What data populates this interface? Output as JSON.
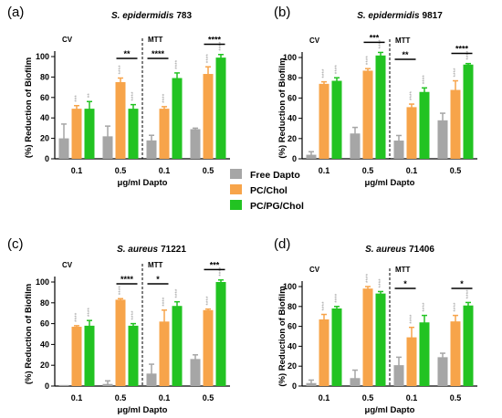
{
  "colors": {
    "free": "#a6a6a6",
    "pc": "#f7a44a",
    "pcpg": "#22c322"
  },
  "legend": [
    {
      "label": "Free Dapto",
      "color": "#a6a6a6"
    },
    {
      "label": "PC/Chol",
      "color": "#f7a44a"
    },
    {
      "label": "PC/PG/Chol",
      "color": "#22c322"
    }
  ],
  "chart_data": [
    {
      "panel": "(a)",
      "title": "S. epidermidis",
      "strain": "783",
      "type": "bar",
      "ylabel": "(%) Reduction of Biofilm",
      "xlabel": "μg/ml Dapto",
      "ylim": [
        0,
        100
      ],
      "yticks": [
        "0",
        "20",
        "40",
        "60",
        "80",
        "100"
      ],
      "sections": [
        "CV",
        "MTT"
      ],
      "categories": [
        "0.1",
        "0.5",
        "0.1",
        "0.5"
      ],
      "series": [
        {
          "name": "Free Dapto",
          "values": [
            20,
            22,
            18,
            29
          ],
          "errors": [
            14,
            10,
            5,
            1
          ]
        },
        {
          "name": "PC/Chol",
          "values": [
            49,
            75,
            49,
            83
          ],
          "errors": [
            3,
            4,
            2,
            7
          ]
        },
        {
          "name": "PC/PG/Chol",
          "values": [
            49,
            49,
            79,
            99
          ],
          "errors": [
            7,
            4,
            5,
            3
          ]
        }
      ],
      "bar_stars": [
        [
          "",
          "",
          "",
          ""
        ],
        [
          "***",
          "****",
          "****",
          "****"
        ],
        [
          "**",
          "****",
          "****",
          "****"
        ]
      ],
      "comparisons": [
        {
          "group": 1,
          "from": 1,
          "to": 2,
          "label": "**"
        },
        {
          "group": 2,
          "from": 0,
          "to": 1,
          "label": "****"
        },
        {
          "group": 3,
          "from": 1,
          "to": 2,
          "label": "****"
        }
      ]
    },
    {
      "panel": "(b)",
      "title": "S. epidermidis",
      "strain": "9817",
      "type": "bar",
      "ylabel": "(%) Reduction of Biofilm",
      "xlabel": "μg/ml Dapto",
      "ylim": [
        0,
        100
      ],
      "yticks": [
        "0",
        "20",
        "40",
        "60",
        "80",
        "100"
      ],
      "sections": [
        "CV",
        "MTT"
      ],
      "categories": [
        "0.1",
        "0.5",
        "0.1",
        "0.5"
      ],
      "series": [
        {
          "name": "Free Dapto",
          "values": [
            4,
            25,
            18,
            38
          ],
          "errors": [
            3,
            6,
            5,
            7
          ]
        },
        {
          "name": "PC/Chol",
          "values": [
            74,
            87,
            51,
            68
          ],
          "errors": [
            2,
            2,
            3,
            9
          ]
        },
        {
          "name": "PC/PG/Chol",
          "values": [
            77,
            102,
            66,
            93
          ],
          "errors": [
            3,
            3,
            4,
            1
          ]
        }
      ],
      "bar_stars": [
        [
          "",
          "",
          "",
          ""
        ],
        [
          "****",
          "****",
          "****",
          "****"
        ],
        [
          "****",
          "****",
          "****",
          "****"
        ]
      ],
      "comparisons": [
        {
          "group": 1,
          "from": 1,
          "to": 2,
          "label": "***"
        },
        {
          "group": 2,
          "from": 0,
          "to": 1,
          "label": "**"
        },
        {
          "group": 3,
          "from": 1,
          "to": 2,
          "label": "****"
        }
      ]
    },
    {
      "panel": "(c)",
      "title": "S. aureus",
      "strain": "71221",
      "type": "bar",
      "ylabel": "(%) Reduction of Biofilm",
      "xlabel": "μg/ml Dapto",
      "ylim": [
        0,
        100
      ],
      "yticks": [
        "0",
        "20",
        "40",
        "60",
        "80",
        "100"
      ],
      "sections": [
        "CV",
        "MTT"
      ],
      "categories": [
        "0.1",
        "0.5",
        "0.1",
        "0.5"
      ],
      "series": [
        {
          "name": "Free Dapto",
          "values": [
            1,
            2,
            12,
            26
          ],
          "errors": [
            0,
            3,
            9,
            4
          ]
        },
        {
          "name": "PC/Chol",
          "values": [
            57,
            83,
            62,
            73
          ],
          "errors": [
            1,
            1,
            11,
            1
          ]
        },
        {
          "name": "PC/PG/Chol",
          "values": [
            58,
            58,
            77,
            100
          ],
          "errors": [
            5,
            2,
            4,
            2
          ]
        }
      ],
      "bar_stars": [
        [
          "",
          "",
          "",
          ""
        ],
        [
          "****",
          "****",
          "****",
          "****"
        ],
        [
          "****",
          "****",
          "****",
          "****"
        ]
      ],
      "comparisons": [
        {
          "group": 1,
          "from": 1,
          "to": 2,
          "label": "****"
        },
        {
          "group": 2,
          "from": 0,
          "to": 1,
          "label": "*"
        },
        {
          "group": 3,
          "from": 1,
          "to": 2,
          "label": "***"
        }
      ]
    },
    {
      "panel": "(d)",
      "title": "S. aureus",
      "strain": "71406",
      "type": "bar",
      "ylabel": "(%) Reduction of Biofilm",
      "xlabel": "μg/ml Dapto",
      "ylim": [
        0,
        100
      ],
      "yticks": [
        "0",
        "20",
        "40",
        "60",
        "80",
        "100"
      ],
      "sections": [
        "CV",
        "MTT"
      ],
      "categories": [
        "0.1",
        "0.5",
        "0.1",
        "0.5"
      ],
      "series": [
        {
          "name": "Free Dapto",
          "values": [
            3,
            8,
            21,
            29
          ],
          "errors": [
            3,
            8,
            8,
            4
          ]
        },
        {
          "name": "PC/Chol",
          "values": [
            67,
            98,
            49,
            65
          ],
          "errors": [
            5,
            2,
            10,
            6
          ]
        },
        {
          "name": "PC/PG/Chol",
          "values": [
            78,
            93,
            64,
            81
          ],
          "errors": [
            2,
            2,
            7,
            3
          ]
        }
      ],
      "bar_stars": [
        [
          "",
          "",
          "",
          ""
        ],
        [
          "****",
          "****",
          "****",
          "****"
        ],
        [
          "****",
          "****",
          "****",
          "****"
        ]
      ],
      "comparisons": [
        {
          "group": 2,
          "from": 0,
          "to": 1,
          "label": "*"
        },
        {
          "group": 3,
          "from": 1,
          "to": 2,
          "label": "*"
        }
      ]
    }
  ]
}
